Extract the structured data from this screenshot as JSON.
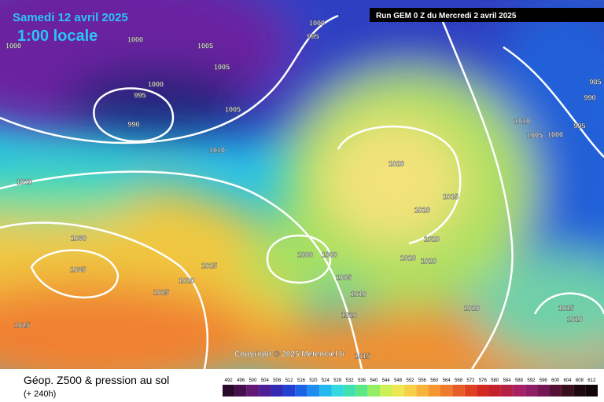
{
  "header": {
    "date": "Samedi 12 avril 2025",
    "time": "1:00 locale",
    "run": "Run GEM 0 Z du Mercredi 2 avril 2025"
  },
  "copyright": "Copyright © 2025 Meteociel.fr",
  "legend": {
    "title": "Géop. Z500 & pression au sol",
    "subtitle": "(+ 240h)",
    "scale": [
      "492",
      "496",
      "500",
      "504",
      "508",
      "512",
      "516",
      "520",
      "524",
      "528",
      "532",
      "536",
      "540",
      "544",
      "548",
      "552",
      "556",
      "560",
      "564",
      "568",
      "572",
      "576",
      "580",
      "584",
      "588",
      "592",
      "596",
      "600",
      "604",
      "608",
      "612"
    ]
  },
  "isobar_labels": [
    "1000",
    "995",
    "1000",
    "1000",
    "1005",
    "1005",
    "1000",
    "995",
    "990",
    "1005",
    "1010",
    "1010",
    "1020",
    "1015",
    "1020",
    "1020",
    "1020",
    "1020",
    "1000",
    "1000",
    "1005",
    "1010",
    "1010",
    "1015",
    "1020",
    "1025",
    "1030",
    "1035",
    "1025",
    "1020",
    "1010",
    "1005",
    "1000",
    "995",
    "990",
    "985",
    "1015",
    "1010",
    "1015"
  ]
}
